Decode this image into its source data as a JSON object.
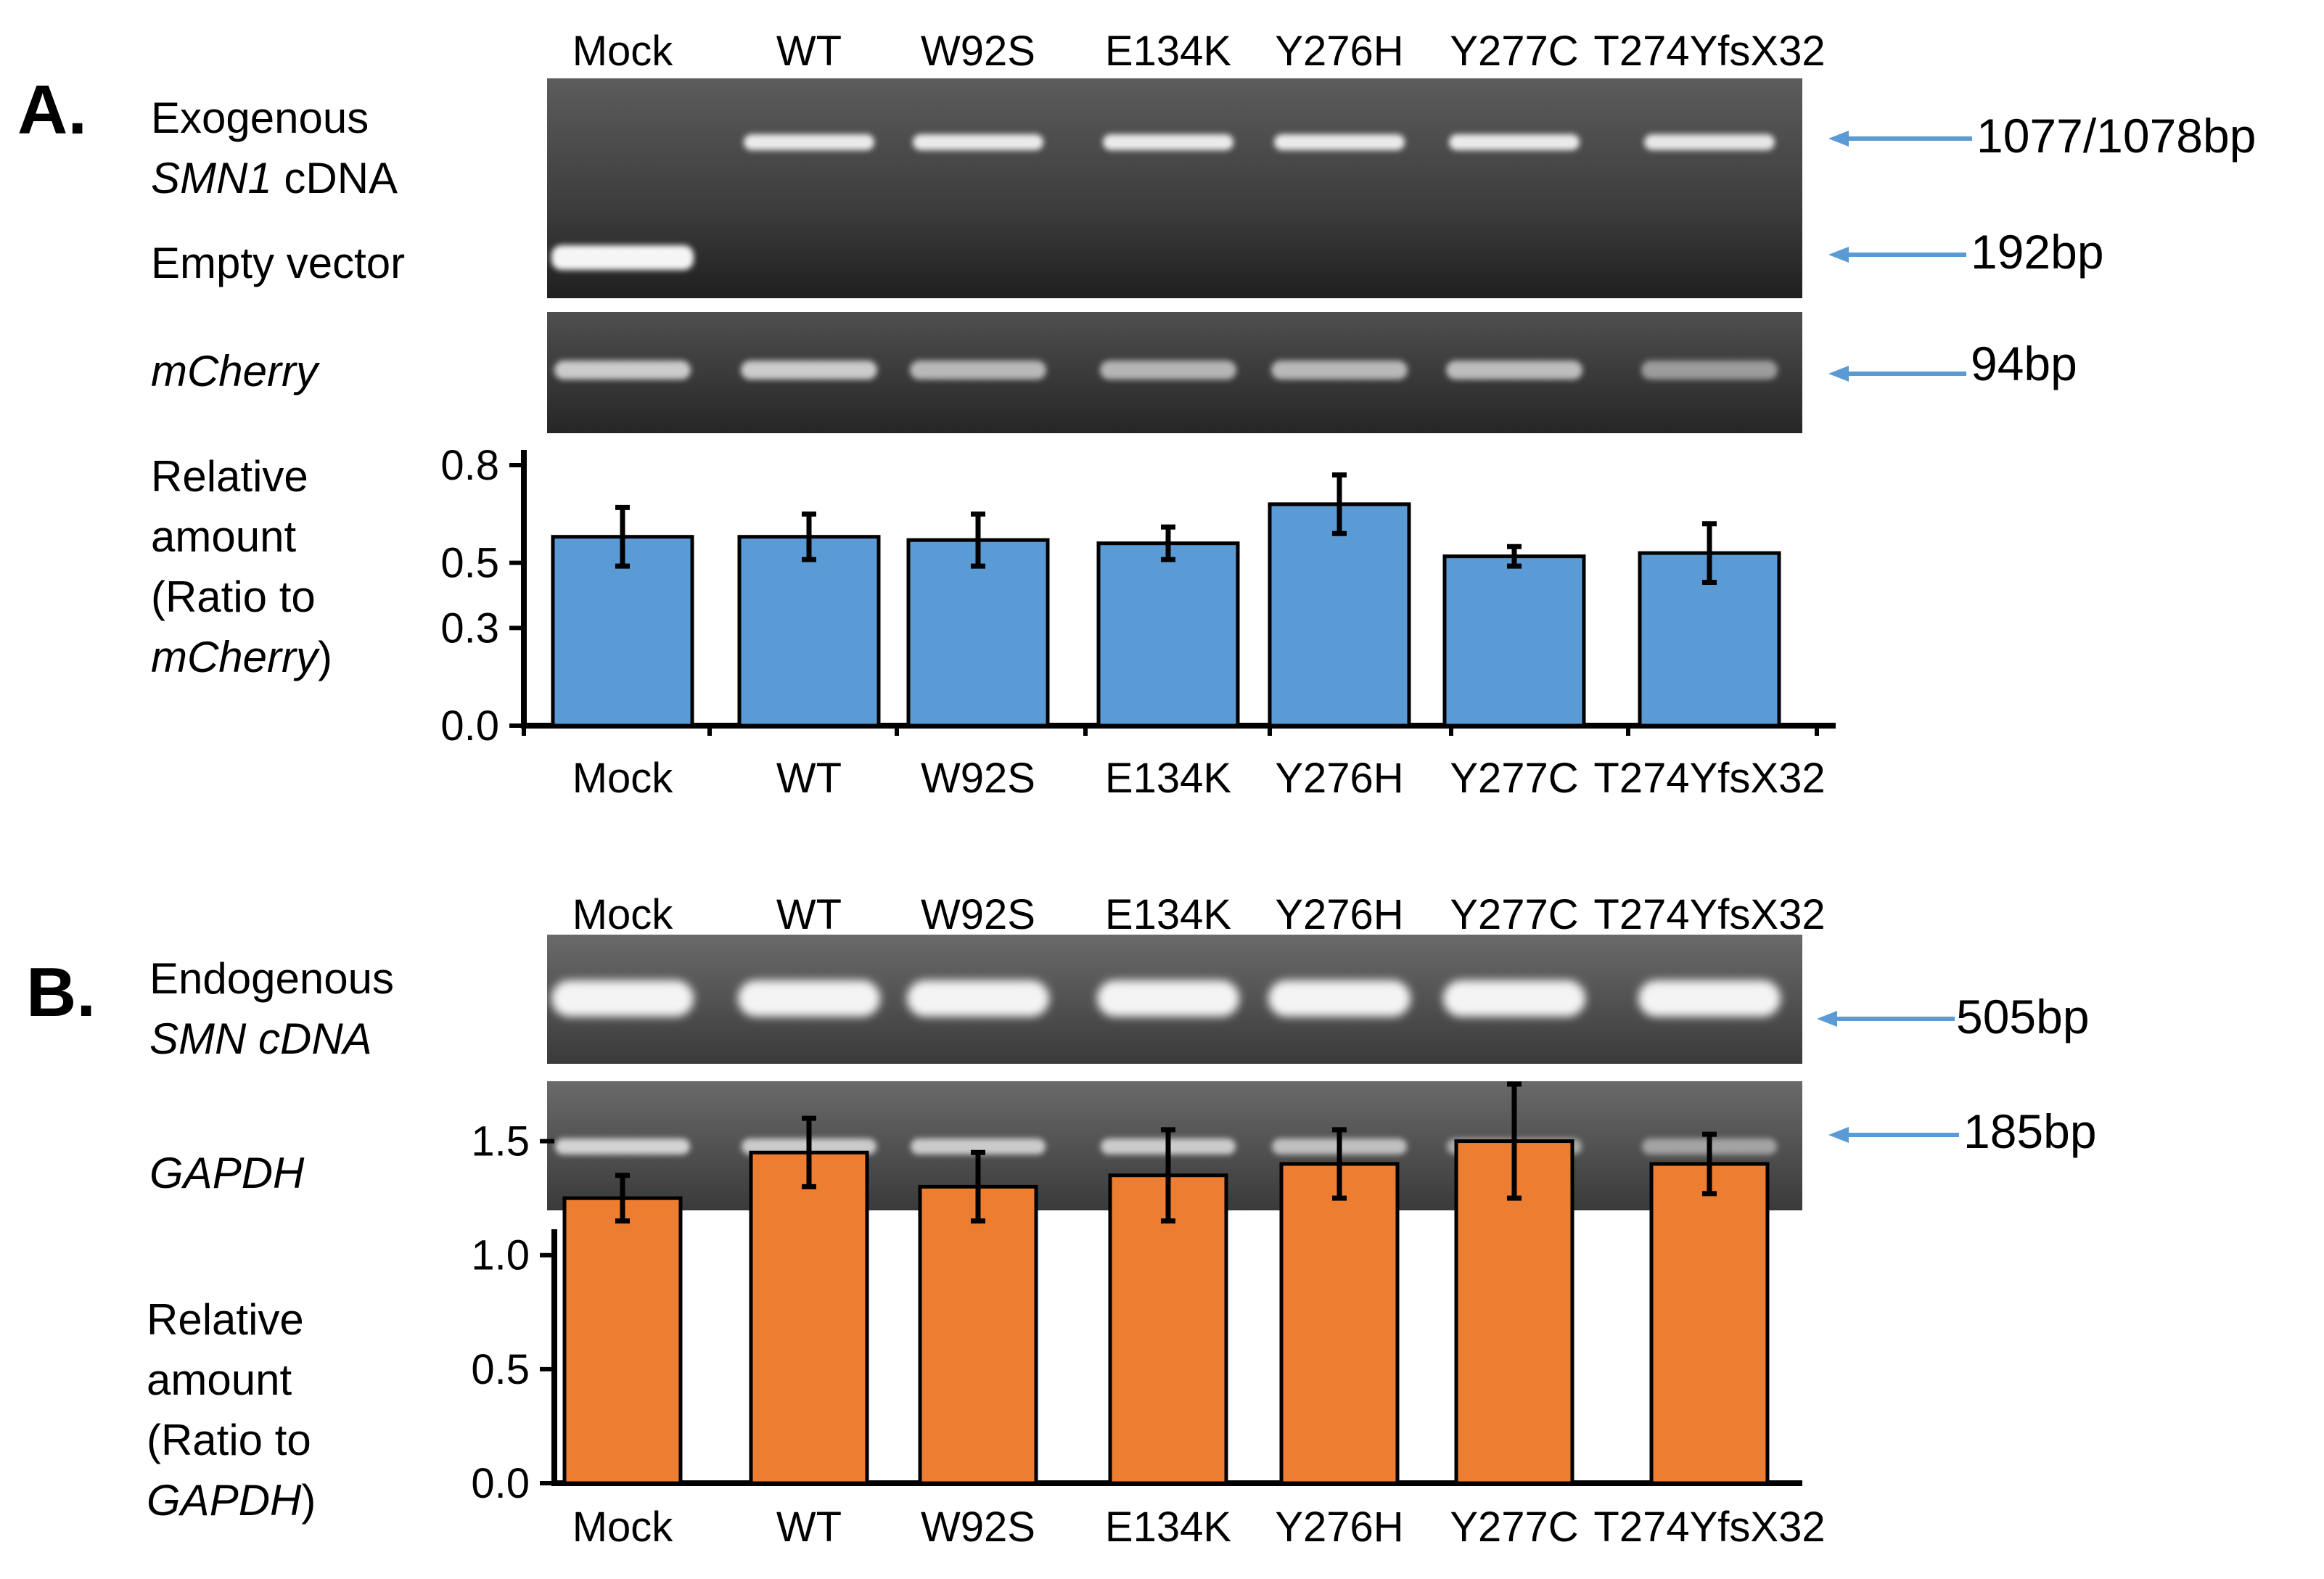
{
  "colors": {
    "bar_a": "#5B9BD5",
    "bar_b": "#ED7D31",
    "arrow": "#5B9BD5",
    "gel_bg": "#3a3a3a"
  },
  "lanes": [
    "Mock",
    "WT",
    "W92S",
    "E134K",
    "Y276H",
    "Y277C",
    "T274YfsX32"
  ],
  "panel_a": {
    "letter": "A.",
    "row1": {
      "label_line1": "Exogenous",
      "label_line2_italic": "SMN1",
      "label_line2_rest": " cDNA"
    },
    "row2": {
      "label": "Empty vector"
    },
    "row3": {
      "label_italic": "mCherry"
    },
    "sizes": {
      "exogenous": "1077/1078bp",
      "empty": "192bp",
      "mcherry": "94bp"
    },
    "ylabel": {
      "line1": "Relative",
      "line2": "amount",
      "line3": "(Ratio to",
      "line4_italic": "mCherry",
      "line4_rest": ")"
    }
  },
  "panel_b": {
    "letter": "B.",
    "row1": {
      "label_line1": "Endogenous",
      "label_line2_italic": "SMN cDNA"
    },
    "row2": {
      "label_italic": "GAPDH"
    },
    "sizes": {
      "smn": "505bp",
      "gapdh": "185bp"
    },
    "ylabel": {
      "line1": "Relative",
      "line2": "amount",
      "line3": "(Ratio to",
      "line4_italic": "GAPDH",
      "line4_rest": ")"
    }
  },
  "chart_data": [
    {
      "type": "bar",
      "panel": "A",
      "categories": [
        "Mock",
        "WT",
        "W92S",
        "E134K",
        "Y276H",
        "Y277C",
        "T274YfsX32"
      ],
      "values": [
        0.58,
        0.58,
        0.57,
        0.56,
        0.68,
        0.52,
        0.53
      ],
      "errors": [
        0.09,
        0.07,
        0.08,
        0.05,
        0.09,
        0.03,
        0.09
      ],
      "yticks": [
        "0.0",
        "0.3",
        "0.5",
        "0.8"
      ],
      "ytick_values": [
        0.0,
        0.3,
        0.5,
        0.8
      ],
      "ylim": [
        0,
        0.8
      ],
      "ylabel": "Relative amount (Ratio to mCherry)"
    },
    {
      "type": "bar",
      "panel": "B",
      "categories": [
        "Mock",
        "WT",
        "W92S",
        "E134K",
        "Y276H",
        "Y277C",
        "T274YfsX32"
      ],
      "values": [
        1.25,
        1.45,
        1.3,
        1.35,
        1.4,
        1.5,
        1.4
      ],
      "errors": [
        0.1,
        0.15,
        0.15,
        0.2,
        0.15,
        0.25,
        0.13
      ],
      "yticks": [
        "0.0",
        "0.5",
        "1.0",
        "1.5"
      ],
      "ytick_values": [
        0.0,
        0.5,
        1.0,
        1.5
      ],
      "ylim": [
        0,
        1.75
      ],
      "ylabel": "Relative amount (Ratio to GAPDH)"
    }
  ]
}
